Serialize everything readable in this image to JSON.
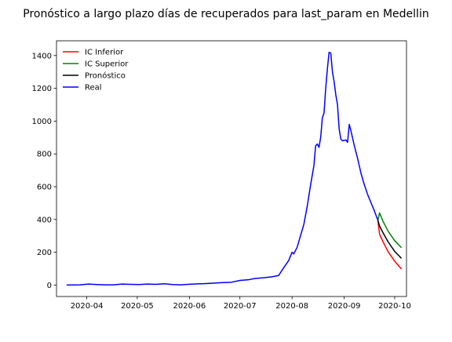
{
  "chart_data": {
    "type": "line",
    "title": "Pronóstico a largo plazo días de recuperados para last_param en Medellin",
    "xlabel": "",
    "ylabel": "",
    "x_axis_type": "date",
    "xlim": [
      "2020-03-14",
      "2020-10-08"
    ],
    "ylim": [
      -70,
      1490
    ],
    "x_ticks": [
      {
        "value": "2020-04-01",
        "label": "2020-04"
      },
      {
        "value": "2020-05-01",
        "label": "2020-05"
      },
      {
        "value": "2020-06-01",
        "label": "2020-06"
      },
      {
        "value": "2020-07-01",
        "label": "2020-07"
      },
      {
        "value": "2020-08-01",
        "label": "2020-08"
      },
      {
        "value": "2020-09-01",
        "label": "2020-09"
      },
      {
        "value": "2020-10-01",
        "label": "2020-10"
      }
    ],
    "y_ticks": [
      0,
      200,
      400,
      600,
      800,
      1000,
      1200,
      1400
    ],
    "grid": false,
    "legend_position": "top-left",
    "series": [
      {
        "name": "IC Inferior",
        "color": "#ff0000",
        "points": [
          [
            "2020-09-21",
            395
          ],
          [
            "2020-09-22",
            310
          ],
          [
            "2020-09-24",
            265
          ],
          [
            "2020-09-27",
            205
          ],
          [
            "2020-10-01",
            145
          ],
          [
            "2020-10-05",
            98
          ]
        ]
      },
      {
        "name": "IC Superior",
        "color": "#008000",
        "points": [
          [
            "2020-09-21",
            395
          ],
          [
            "2020-09-22",
            440
          ],
          [
            "2020-09-24",
            390
          ],
          [
            "2020-09-27",
            330
          ],
          [
            "2020-10-01",
            270
          ],
          [
            "2020-10-05",
            228
          ]
        ]
      },
      {
        "name": "Pronóstico",
        "color": "#000000",
        "points": [
          [
            "2020-09-21",
            395
          ],
          [
            "2020-09-22",
            360
          ],
          [
            "2020-09-24",
            320
          ],
          [
            "2020-09-27",
            265
          ],
          [
            "2020-10-01",
            205
          ],
          [
            "2020-10-05",
            163
          ]
        ]
      },
      {
        "name": "Real",
        "color": "#0000ff",
        "points": [
          [
            "2020-03-20",
            0
          ],
          [
            "2020-03-28",
            1
          ],
          [
            "2020-04-02",
            6
          ],
          [
            "2020-04-07",
            3
          ],
          [
            "2020-04-12",
            1
          ],
          [
            "2020-04-17",
            1
          ],
          [
            "2020-04-22",
            6
          ],
          [
            "2020-04-27",
            4
          ],
          [
            "2020-05-02",
            3
          ],
          [
            "2020-05-07",
            6
          ],
          [
            "2020-05-12",
            4
          ],
          [
            "2020-05-17",
            8
          ],
          [
            "2020-05-22",
            3
          ],
          [
            "2020-05-27",
            1
          ],
          [
            "2020-06-01",
            5
          ],
          [
            "2020-06-06",
            7
          ],
          [
            "2020-06-11",
            9
          ],
          [
            "2020-06-16",
            12
          ],
          [
            "2020-06-21",
            15
          ],
          [
            "2020-06-26",
            17
          ],
          [
            "2020-07-01",
            28
          ],
          [
            "2020-07-06",
            32
          ],
          [
            "2020-07-10",
            40
          ],
          [
            "2020-07-15",
            44
          ],
          [
            "2020-07-20",
            50
          ],
          [
            "2020-07-24",
            58
          ],
          [
            "2020-07-27",
            105
          ],
          [
            "2020-07-30",
            150
          ],
          [
            "2020-08-01",
            200
          ],
          [
            "2020-08-02",
            190
          ],
          [
            "2020-08-04",
            230
          ],
          [
            "2020-08-06",
            300
          ],
          [
            "2020-08-08",
            370
          ],
          [
            "2020-08-10",
            480
          ],
          [
            "2020-08-12",
            610
          ],
          [
            "2020-08-14",
            730
          ],
          [
            "2020-08-15",
            850
          ],
          [
            "2020-08-16",
            860
          ],
          [
            "2020-08-17",
            840
          ],
          [
            "2020-08-18",
            900
          ],
          [
            "2020-08-19",
            1020
          ],
          [
            "2020-08-20",
            1050
          ],
          [
            "2020-08-21",
            1200
          ],
          [
            "2020-08-22",
            1320
          ],
          [
            "2020-08-23",
            1420
          ],
          [
            "2020-08-24",
            1415
          ],
          [
            "2020-08-25",
            1300
          ],
          [
            "2020-08-26",
            1240
          ],
          [
            "2020-08-27",
            1160
          ],
          [
            "2020-08-28",
            1100
          ],
          [
            "2020-08-29",
            950
          ],
          [
            "2020-08-30",
            890
          ],
          [
            "2020-08-31",
            880
          ],
          [
            "2020-09-02",
            885
          ],
          [
            "2020-09-03",
            870
          ],
          [
            "2020-09-04",
            980
          ],
          [
            "2020-09-05",
            940
          ],
          [
            "2020-09-07",
            850
          ],
          [
            "2020-09-09",
            770
          ],
          [
            "2020-09-11",
            680
          ],
          [
            "2020-09-13",
            610
          ],
          [
            "2020-09-15",
            550
          ],
          [
            "2020-09-17",
            500
          ],
          [
            "2020-09-19",
            450
          ],
          [
            "2020-09-21",
            395
          ]
        ]
      }
    ]
  }
}
